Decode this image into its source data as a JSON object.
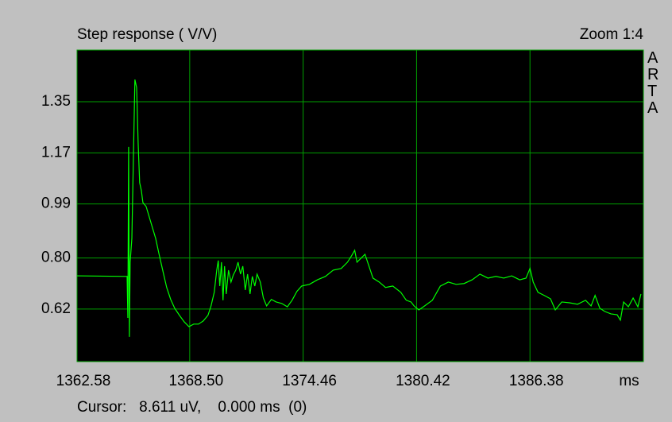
{
  "chart_data": {
    "type": "line",
    "title": "Step response ( V/V)",
    "zoom_label": "Zoom 1:4",
    "side_label": "ARTA",
    "xlabel": "ms",
    "cursor_readout": "Cursor:   8.611 uV,    0.000 ms  (0)",
    "color": "#00ff00",
    "grid_color": "#00a000",
    "grid": true,
    "xlim": [
      1362.58,
      1392.34
    ],
    "xticks": [
      1362.58,
      {
        "value": 1368.5,
        "label": "1368.50"
      },
      1374.46,
      1380.42,
      1386.38
    ],
    "ylim": [
      0.435,
      1.532
    ],
    "yticks": [
      0.62,
      {
        "value": 0.8,
        "label": "0.80"
      },
      0.99,
      1.17,
      1.35
    ],
    "x": [
      1362.58,
      1365.21,
      1365.25,
      1365.29,
      1365.33,
      1365.37,
      1365.46,
      1365.54,
      1365.62,
      1365.71,
      1365.79,
      1365.87,
      1365.96,
      1366.04,
      1366.21,
      1366.46,
      1366.71,
      1366.87,
      1367.08,
      1367.29,
      1367.5,
      1367.71,
      1367.96,
      1368.21,
      1368.46,
      1368.71,
      1368.96,
      1369.21,
      1369.46,
      1369.62,
      1369.79,
      1369.92,
      1370.0,
      1370.08,
      1370.17,
      1370.25,
      1370.33,
      1370.42,
      1370.54,
      1370.67,
      1370.79,
      1370.92,
      1371.04,
      1371.17,
      1371.29,
      1371.42,
      1371.54,
      1371.67,
      1371.79,
      1371.92,
      1372.04,
      1372.21,
      1372.37,
      1372.54,
      1372.79,
      1373.04,
      1373.33,
      1373.63,
      1373.88,
      1374.13,
      1374.38,
      1374.79,
      1375.21,
      1375.63,
      1376.04,
      1376.46,
      1376.79,
      1377.0,
      1377.17,
      1377.29,
      1377.5,
      1377.71,
      1377.92,
      1378.13,
      1378.46,
      1378.79,
      1379.17,
      1379.59,
      1379.88,
      1380.13,
      1380.29,
      1380.54,
      1380.84,
      1381.25,
      1381.67,
      1382.09,
      1382.5,
      1382.92,
      1383.34,
      1383.75,
      1384.17,
      1384.59,
      1385.0,
      1385.42,
      1385.84,
      1386.17,
      1386.38,
      1386.55,
      1386.8,
      1387.13,
      1387.46,
      1387.71,
      1388.05,
      1388.46,
      1388.88,
      1389.3,
      1389.59,
      1389.8,
      1390.05,
      1390.3,
      1390.63,
      1390.96,
      1391.13,
      1391.3,
      1391.55,
      1391.8,
      1392.05,
      1392.21
    ],
    "values": [
      0.737,
      0.735,
      0.589,
      1.191,
      0.522,
      0.785,
      0.869,
      1.149,
      1.428,
      1.4,
      1.205,
      1.065,
      1.037,
      0.995,
      0.981,
      0.925,
      0.869,
      0.819,
      0.757,
      0.696,
      0.654,
      0.623,
      0.598,
      0.575,
      0.558,
      0.567,
      0.567,
      0.578,
      0.598,
      0.631,
      0.679,
      0.757,
      0.791,
      0.701,
      0.785,
      0.651,
      0.771,
      0.673,
      0.757,
      0.715,
      0.74,
      0.757,
      0.785,
      0.743,
      0.771,
      0.687,
      0.743,
      0.673,
      0.735,
      0.701,
      0.743,
      0.715,
      0.659,
      0.631,
      0.654,
      0.645,
      0.64,
      0.628,
      0.651,
      0.682,
      0.701,
      0.707,
      0.723,
      0.735,
      0.757,
      0.763,
      0.785,
      0.807,
      0.827,
      0.785,
      0.799,
      0.813,
      0.771,
      0.729,
      0.715,
      0.696,
      0.701,
      0.679,
      0.651,
      0.645,
      0.631,
      0.617,
      0.631,
      0.651,
      0.701,
      0.715,
      0.707,
      0.71,
      0.723,
      0.743,
      0.729,
      0.735,
      0.729,
      0.737,
      0.723,
      0.729,
      0.763,
      0.715,
      0.679,
      0.668,
      0.656,
      0.617,
      0.645,
      0.642,
      0.637,
      0.651,
      0.631,
      0.668,
      0.623,
      0.612,
      0.603,
      0.6,
      0.581,
      0.645,
      0.628,
      0.659,
      0.628,
      0.673
    ]
  }
}
